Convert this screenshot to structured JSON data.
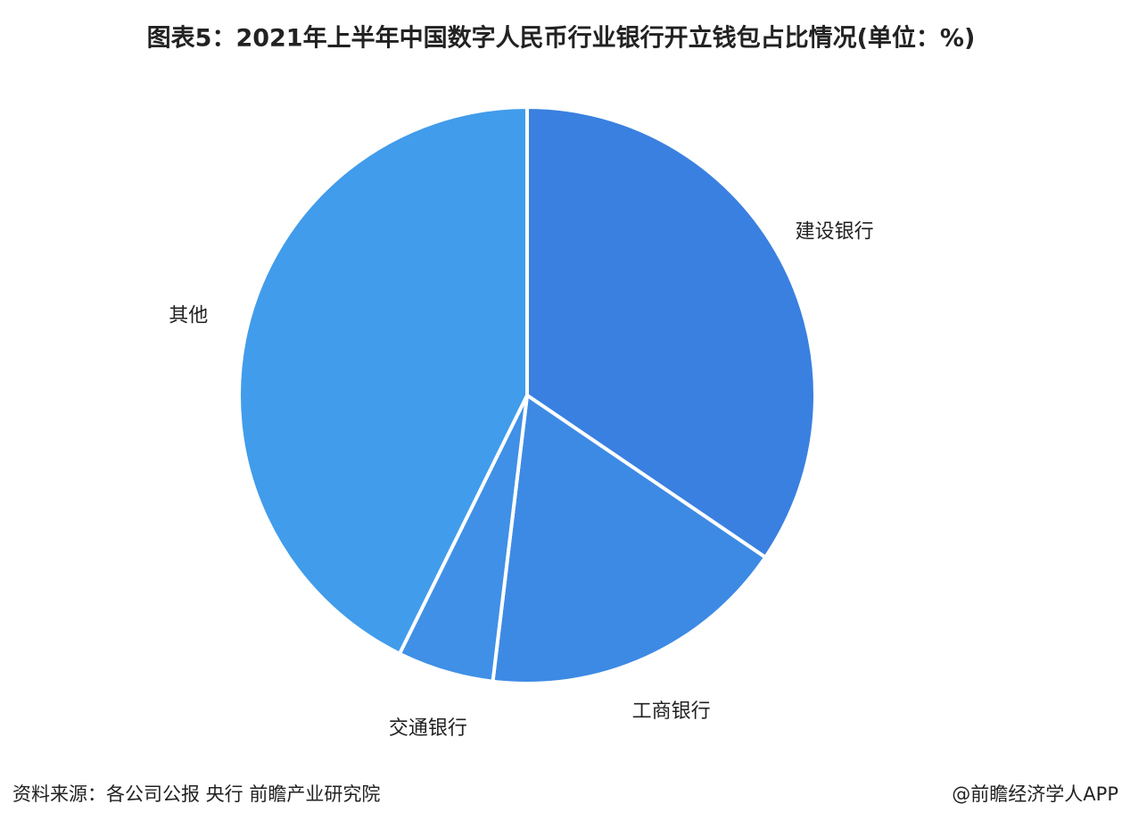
{
  "chart_data": {
    "type": "pie",
    "title": "图表5：2021年上半年中国数字人民币行业银行开立钱包占比情况(单位：%)",
    "categories": [
      "建设银行",
      "工商银行",
      "交通银行",
      "其他"
    ],
    "values": [
      34.5,
      17.4,
      5.4,
      42.7
    ],
    "colors": [
      "#3a80e0",
      "#3d8ae4",
      "#3f90e6",
      "#419ceb"
    ],
    "source": "资料来源：各公司公报 央行 前瞻产业研究院",
    "credit": "@前瞻经济学人APP"
  }
}
